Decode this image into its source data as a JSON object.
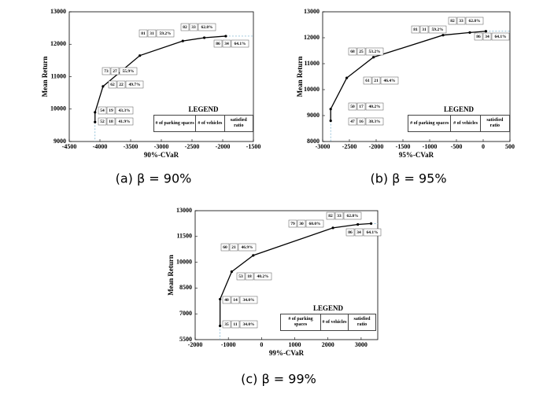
{
  "chart_data": [
    {
      "type": "line",
      "caption": "(a) β = 90%",
      "xlabel": "90%-CVaR",
      "ylabel": "Mean Return",
      "xlim": [
        -4500,
        -1500
      ],
      "ylim": [
        9000,
        13000
      ],
      "xticks": [
        -4500,
        -4000,
        -3500,
        -3000,
        -2500,
        -2000,
        -1500
      ],
      "yticks": [
        9000,
        10000,
        11000,
        12000,
        13000
      ],
      "x": [
        -4080,
        -4080,
        -3950,
        -3350,
        -2650,
        -2300,
        -1950
      ],
      "series": [
        {
          "color": "#000000",
          "values": [
            9600,
            9900,
            10700,
            11650,
            12100,
            12200,
            12250
          ]
        }
      ],
      "point_labels": [
        [
          52,
          18,
          "41.9%"
        ],
        [
          54,
          19,
          "43.3%"
        ],
        [
          62,
          22,
          "49.7%"
        ],
        [
          73,
          27,
          "55.9%"
        ],
        [
          81,
          31,
          "59.2%"
        ],
        [
          82,
          33,
          "62.8%"
        ],
        [
          86,
          34,
          "64.1%"
        ]
      ],
      "legend": {
        "title": "LEGEND",
        "columns": [
          "# of parking spaces",
          "# of vehicles",
          "satisfied ratio"
        ]
      }
    },
    {
      "type": "line",
      "caption": "(b) β = 95%",
      "xlabel": "95%-CVaR",
      "ylabel": "Mean Return",
      "xlim": [
        -3000,
        500
      ],
      "ylim": [
        8000,
        13000
      ],
      "xticks": [
        -3000,
        -2500,
        -2000,
        -1500,
        -1000,
        -500,
        0,
        500
      ],
      "yticks": [
        8000,
        9000,
        10000,
        11000,
        12000,
        13000
      ],
      "x": [
        -2850,
        -2850,
        -2550,
        -2050,
        -750,
        -250,
        50
      ],
      "series": [
        {
          "color": "#000000",
          "values": [
            8800,
            9250,
            10450,
            11250,
            12100,
            12200,
            12250
          ]
        }
      ],
      "point_labels": [
        [
          47,
          16,
          "38.3%"
        ],
        [
          50,
          17,
          "40.2%"
        ],
        [
          61,
          21,
          "46.4%"
        ],
        [
          68,
          25,
          "53.2%"
        ],
        [
          81,
          31,
          "59.2%"
        ],
        [
          82,
          33,
          "62.8%"
        ],
        [
          86,
          34,
          "64.1%"
        ]
      ],
      "legend": {
        "title": "LEGEND",
        "columns": [
          "# of parking spaces",
          "# of vehicles",
          "satisfied ratio"
        ]
      }
    },
    {
      "type": "line",
      "caption": "(c) β = 99%",
      "xlabel": "99%-CVaR",
      "ylabel": "Mean Return",
      "xlim": [
        -2000,
        3500
      ],
      "ylim": [
        5500,
        13000
      ],
      "xticks": [
        -2000,
        -1000,
        0,
        1000,
        2000,
        3000
      ],
      "yticks": [
        5500,
        7000,
        8500,
        10000,
        11500,
        13000
      ],
      "x": [
        -1250,
        -1250,
        -900,
        -250,
        2150,
        2900,
        3300
      ],
      "series": [
        {
          "color": "#000000",
          "values": [
            6300,
            7850,
            9450,
            10400,
            12000,
            12200,
            12250
          ]
        }
      ],
      "point_labels": [
        [
          35,
          11,
          "34.0%"
        ],
        [
          40,
          14,
          "34.0%"
        ],
        [
          53,
          18,
          "40.2%"
        ],
        [
          60,
          21,
          "46.9%"
        ],
        [
          79,
          30,
          "60.0%"
        ],
        [
          82,
          33,
          "62.8%"
        ],
        [
          86,
          34,
          "64.1%"
        ]
      ],
      "legend": {
        "title": "LEGEND",
        "columns": [
          "# of parking spaces",
          "# of vehicles",
          "satisfied ratio"
        ]
      }
    }
  ]
}
